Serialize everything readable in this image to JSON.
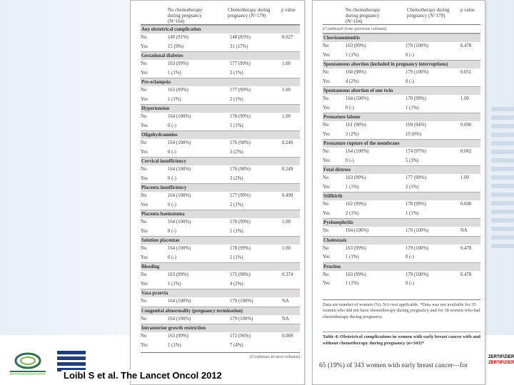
{
  "left_table": {
    "col_headers": [
      "",
      "No chemotherapy during pregnancy (N=164)",
      "Chemotherapy during pregnancy (N=179)",
      "p value"
    ],
    "sections": [
      {
        "title": "Any obstetrical complication",
        "rows": [
          [
            "No",
            "149 (91%)",
            "148 (83%)",
            "0.027"
          ],
          [
            "Yes",
            "15 (9%)",
            "31 (17%)",
            ""
          ]
        ]
      },
      {
        "title": "Gestational diabetes",
        "rows": [
          [
            "No",
            "163 (99%)",
            "177 (99%)",
            "1.00"
          ],
          [
            "Yes",
            "1 (1%)",
            "2 (1%)",
            ""
          ]
        ]
      },
      {
        "title": "Pre-eclampsia",
        "rows": [
          [
            "No",
            "163 (99%)",
            "177 (99%)",
            "1.00"
          ],
          [
            "Yes",
            "1 (1%)",
            "2 (1%)",
            ""
          ]
        ]
      },
      {
        "title": "Hypertension",
        "rows": [
          [
            "No",
            "164 (100%)",
            "178 (99%)",
            "1.00"
          ],
          [
            "Yes",
            "0 (-)",
            "1 (1%)",
            ""
          ]
        ]
      },
      {
        "title": "Oligohydramnios",
        "rows": [
          [
            "No",
            "164 (100%)",
            "176 (98%)",
            "0.249"
          ],
          [
            "Yes",
            "0 (-)",
            "3 (2%)",
            ""
          ]
        ]
      },
      {
        "title": "Cervical insufficiency",
        "rows": [
          [
            "No",
            "164 (100%)",
            "176 (98%)",
            "0.249"
          ],
          [
            "Yes",
            "0 (-)",
            "3 (2%)",
            ""
          ]
        ]
      },
      {
        "title": "Placenta insufficiency",
        "rows": [
          [
            "No",
            "164 (100%)",
            "177 (99%)",
            "0.499"
          ],
          [
            "Yes",
            "0 (-)",
            "2 (1%)",
            ""
          ]
        ]
      },
      {
        "title": "Placenta haematoma",
        "rows": [
          [
            "No",
            "164 (100%)",
            "178 (99%)",
            "1.00"
          ],
          [
            "Yes",
            "0 (-)",
            "1 (1%)",
            ""
          ]
        ]
      },
      {
        "title": "Solution placentae",
        "rows": [
          [
            "No",
            "164 (100%)",
            "178 (99%)",
            "1.00"
          ],
          [
            "Yes",
            "0 (-)",
            "1 (1%)",
            ""
          ]
        ]
      },
      {
        "title": "Bleeding",
        "rows": [
          [
            "No",
            "163 (99%)",
            "175 (98%)",
            "0.374"
          ],
          [
            "Yes",
            "1 (1%)",
            "4 (2%)",
            ""
          ]
        ]
      },
      {
        "title": "Vasa praevia",
        "rows": [
          [
            "No",
            "164 (100%)",
            "179 (100%)",
            "NA"
          ]
        ]
      },
      {
        "title": "Congenital abnormality (pregnancy termination)",
        "rows": [
          [
            "No",
            "164 (100%)",
            "179 (100%)",
            "NA"
          ]
        ]
      },
      {
        "title": "Intrauterine growth restriction",
        "rows": [
          [
            "No",
            "163 (99%)",
            "172 (96%)",
            "0.069"
          ],
          [
            "Yes",
            "1 (1%)",
            "7 (4%)",
            ""
          ]
        ]
      }
    ],
    "continues": "(Continues in next column)"
  },
  "right_table": {
    "col_headers": [
      "",
      "No chemotherapy during pregnancy (N=164)",
      "Chemotherapy during pregnancy (N=179)",
      "p value"
    ],
    "continued": "(Continued from previous column)",
    "sections": [
      {
        "title": "Chorioamnionitis",
        "rows": [
          [
            "No",
            "163 (99%)",
            "179 (100%)",
            "0.478"
          ],
          [
            "Yes",
            "1 (1%)",
            "0 (-)",
            ""
          ]
        ]
      },
      {
        "title": "Spontaneous abortion (included in pregnancy interruptions)",
        "rows": [
          [
            "No",
            "160 (98%)",
            "179 (100%)",
            "0.051"
          ],
          [
            "Yes",
            "4 (2%)",
            "0 (-)",
            ""
          ]
        ]
      },
      {
        "title": "Spontaneous abortion of one twin",
        "rows": [
          [
            "No",
            "164 (100%)",
            "178 (99%)",
            "1.00"
          ],
          [
            "Yes",
            "0 (-)",
            "1 (1%)",
            ""
          ]
        ]
      },
      {
        "title": "Premature labour",
        "rows": [
          [
            "No",
            "161 (98%)",
            "169 (94%)",
            "0.090"
          ],
          [
            "Yes",
            "3 (2%)",
            "10 (6%)",
            ""
          ]
        ]
      },
      {
        "title": "Premature rupture of the membrane",
        "rows": [
          [
            "No",
            "164 (100%)",
            "174 (97%)",
            "0.062"
          ],
          [
            "Yes",
            "0 (-)",
            "5 (3%)",
            ""
          ]
        ]
      },
      {
        "title": "Fetal distress",
        "rows": [
          [
            "No",
            "163 (99%)",
            "177 (99%)",
            "1.00"
          ],
          [
            "Yes",
            "1 (1%)",
            "2 (1%)",
            ""
          ]
        ]
      },
      {
        "title": "Stillbirth",
        "rows": [
          [
            "No",
            "162 (99%)",
            "178 (99%)",
            "0.608"
          ],
          [
            "Yes",
            "2 (1%)",
            "1 (1%)",
            ""
          ]
        ]
      },
      {
        "title": "Pyelonephritis",
        "rows": [
          [
            "No",
            "164 (100%)",
            "179 (100%)",
            "NA"
          ]
        ]
      },
      {
        "title": "Cholestasis",
        "rows": [
          [
            "No",
            "163 (99%)",
            "179 (100%)",
            "0.478"
          ],
          [
            "Yes",
            "1 (1%)",
            "0 (-)",
            ""
          ]
        ]
      },
      {
        "title": "Pruritus",
        "rows": [
          [
            "No",
            "163 (99%)",
            "179 (100%)",
            "0.478"
          ],
          [
            "Yes",
            "1 (1%)",
            "0 (-)",
            ""
          ]
        ]
      }
    ],
    "footnote": "Data are number of women (%). NA=not applicable. *Data was not available for 35 women who did not have chemotherapy during pregnancy and for 18 women who had chemotherapy during pregnancy.",
    "caption_bold": "Table 4: Obstetrical complications in women with early breast cancer with and without chemotherapy during pregnancy (n=343)*"
  },
  "body_text": "65 (19%) of 343 women with early breast cancer—for",
  "citation": "Loibl S et al. The Lancet Oncol 2012",
  "cert_badge": {
    "line1": "ZERTIFIZIERT",
    "line2": "ZERTIFIZIERT"
  },
  "logos": {
    "left": "kcav-logo",
    "second": "ago-logo"
  }
}
